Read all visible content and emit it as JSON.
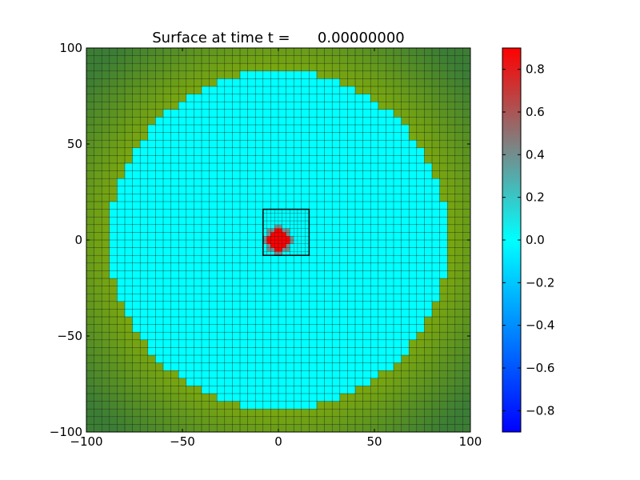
{
  "chart_data": {
    "type": "heatmap",
    "title": "Surface at time t =      0.00000000",
    "xlabel": "",
    "ylabel": "",
    "xlim": [
      -100,
      100
    ],
    "ylim": [
      -100,
      100
    ],
    "x_ticks": [
      -100,
      -50,
      0,
      50,
      100
    ],
    "y_ticks": [
      -100,
      -50,
      0,
      50,
      100
    ],
    "x_tick_labels": [
      "−100",
      "−50",
      "0",
      "50",
      "100"
    ],
    "y_tick_labels": [
      "−100",
      "−50",
      "0",
      "50",
      "100"
    ],
    "grid": "coarse mesh 4 units, refined patch 2 units",
    "coarse_cell_size": 4,
    "water_region": {
      "shape": "circle",
      "center": [
        0,
        0
      ],
      "radius": 88,
      "value": 0.0
    },
    "hump": {
      "center": [
        0,
        0
      ],
      "radius": 5.5,
      "peak_value": 0.9
    },
    "refined_patch": {
      "x_range": [
        -8,
        16
      ],
      "y_range": [
        -8,
        16
      ],
      "cell_size": 2
    },
    "land_colors": {
      "edge": "#3b7d34",
      "interior": "#7aa80f"
    },
    "colorbar": {
      "range": [
        -0.9,
        0.9
      ],
      "ticks": [
        0.8,
        0.6,
        0.4,
        0.2,
        0.0,
        -0.2,
        -0.4,
        -0.6,
        -0.8
      ],
      "tick_labels": [
        "0.8",
        "0.6",
        "0.4",
        "0.2",
        "0.0",
        "−0.2",
        "−0.4",
        "−0.6",
        "−0.8"
      ],
      "stops": [
        {
          "value": -0.9,
          "color": "#0000ff"
        },
        {
          "value": 0.0,
          "color": "#00ffff"
        },
        {
          "value": 0.45,
          "color": "#808080"
        },
        {
          "value": 0.9,
          "color": "#ff0000"
        }
      ]
    }
  }
}
